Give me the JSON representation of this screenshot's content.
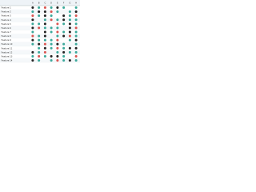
{
  "table": {
    "columns": [
      "A",
      "B",
      "C",
      "D",
      "E",
      "F",
      "G",
      "H"
    ],
    "rows": [
      "Feature 1",
      "Feature 2",
      "Feature 3",
      "Feature 4",
      "Feature 5",
      "Feature 6",
      "Feature 7",
      "Feature 8",
      "Feature 9",
      "Feature 10",
      "Feature 11",
      "Feature 12",
      "Feature 13",
      "Feature 14"
    ]
  }
}
